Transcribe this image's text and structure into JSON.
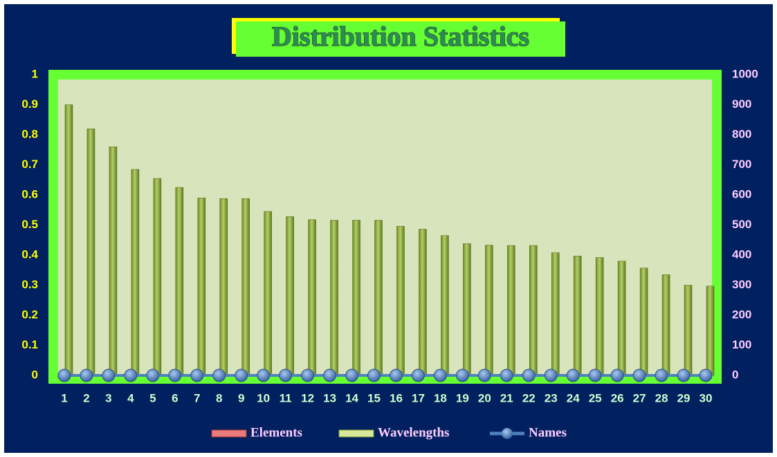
{
  "chart_data": {
    "type": "bar",
    "title": "Distribution Statistics",
    "categories": [
      "1",
      "2",
      "3",
      "4",
      "5",
      "6",
      "7",
      "8",
      "9",
      "10",
      "11",
      "12",
      "13",
      "14",
      "15",
      "16",
      "17",
      "18",
      "19",
      "20",
      "21",
      "22",
      "23",
      "24",
      "25",
      "26",
      "27",
      "28",
      "29",
      "30"
    ],
    "series": [
      {
        "name": "Elements",
        "type": "bar",
        "axis": "y",
        "color": "#e05a5a",
        "values": [
          0,
          0,
          0,
          0,
          0,
          0,
          0,
          0,
          0,
          0,
          0,
          0,
          0,
          0,
          0,
          0,
          0,
          0,
          0,
          0,
          0,
          0,
          0,
          0,
          0,
          0,
          0,
          0,
          0,
          0
        ]
      },
      {
        "name": "Wavelengths",
        "type": "bar",
        "axis": "y2",
        "color": "#8fac3e",
        "values": [
          900,
          820,
          760,
          685,
          655,
          625,
          590,
          588,
          588,
          545,
          528,
          518,
          516,
          516,
          516,
          496,
          486,
          465,
          438,
          433,
          432,
          432,
          408,
          397,
          392,
          380,
          357,
          335,
          300,
          297
        ]
      },
      {
        "name": "Names",
        "type": "line",
        "axis": "y",
        "color": "#4f81bd",
        "values": [
          0,
          0,
          0,
          0,
          0,
          0,
          0,
          0,
          0,
          0,
          0,
          0,
          0,
          0,
          0,
          0,
          0,
          0,
          0,
          0,
          0,
          0,
          0,
          0,
          0,
          0,
          0,
          0,
          0,
          0
        ]
      }
    ],
    "ylim": [
      0,
      1
    ],
    "yticks": [
      0,
      0.1,
      0.2,
      0.3,
      0.4,
      0.5,
      0.6,
      0.7,
      0.8,
      0.9,
      1
    ],
    "y2lim": [
      0,
      1000
    ],
    "y2ticks": [
      0,
      100,
      200,
      300,
      400,
      500,
      600,
      700,
      800,
      900,
      1000
    ],
    "legend": "bottom"
  }
}
